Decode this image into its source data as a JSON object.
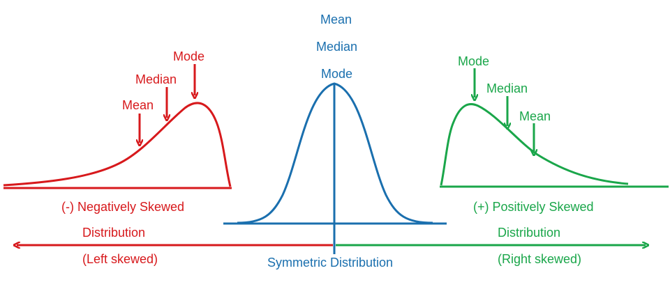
{
  "colors": {
    "negative": "#d7191c",
    "symmetric": "#1a6fae",
    "positive": "#1aa64a"
  },
  "negative": {
    "mode": "Mode",
    "median": "Median",
    "mean": "Mean",
    "title": "(-) Negatively Skewed",
    "subtitle": "Distribution",
    "note": "(Left skewed)"
  },
  "symmetric": {
    "mean": "Mean",
    "median": "Median",
    "mode": "Mode",
    "title": "Symmetric Distribution"
  },
  "positive": {
    "mode": "Mode",
    "median": "Median",
    "mean": "Mean",
    "title": "(+) Positively Skewed",
    "subtitle": "Distribution",
    "note": "(Right skewed)"
  }
}
